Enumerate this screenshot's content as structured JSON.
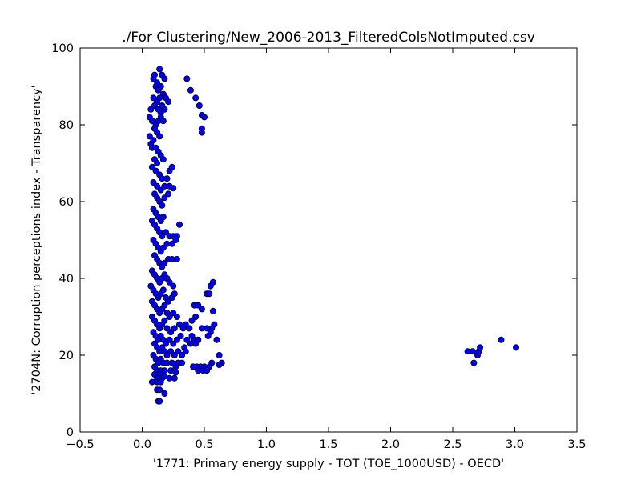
{
  "chart_data": {
    "type": "scatter",
    "title": "./For Clustering/New_2006-2013_FilteredColsNotImputed.csv",
    "xlabel": "'1771: Primary energy supply - TOT (TOE_1000USD) - OECD'",
    "ylabel": "'2704N: Corruption perceptions index - Transparency'",
    "xlim": [
      -0.5,
      3.5
    ],
    "ylim": [
      0,
      100
    ],
    "xticks": [
      "−0.5",
      "0.0",
      "0.5",
      "1.0",
      "1.5",
      "2.0",
      "2.5",
      "3.0",
      "3.5"
    ],
    "yticks": [
      "0",
      "20",
      "40",
      "60",
      "80",
      "100"
    ],
    "grid": false,
    "marker_color": "#0000ff",
    "marker_edge": "#000000",
    "points": [
      [
        0.09,
        92
      ],
      [
        0.1,
        93
      ],
      [
        0.12,
        91
      ],
      [
        0.14,
        94.5
      ],
      [
        0.16,
        93
      ],
      [
        0.18,
        92
      ],
      [
        0.11,
        90
      ],
      [
        0.13,
        89
      ],
      [
        0.15,
        90
      ],
      [
        0.17,
        88
      ],
      [
        0.09,
        87
      ],
      [
        0.12,
        86
      ],
      [
        0.14,
        87
      ],
      [
        0.16,
        85
      ],
      [
        0.19,
        87
      ],
      [
        0.21,
        86
      ],
      [
        0.1,
        85
      ],
      [
        0.13,
        84
      ],
      [
        0.15,
        83
      ],
      [
        0.18,
        84
      ],
      [
        0.07,
        84
      ],
      [
        0.06,
        82
      ],
      [
        0.08,
        81
      ],
      [
        0.11,
        80
      ],
      [
        0.13,
        81
      ],
      [
        0.15,
        82
      ],
      [
        0.17,
        81
      ],
      [
        0.1,
        79
      ],
      [
        0.12,
        78
      ],
      [
        0.14,
        77
      ],
      [
        0.06,
        77
      ],
      [
        0.07,
        75
      ],
      [
        0.08,
        74
      ],
      [
        0.09,
        76
      ],
      [
        0.11,
        74
      ],
      [
        0.13,
        73
      ],
      [
        0.15,
        72
      ],
      [
        0.17,
        71
      ],
      [
        0.1,
        71
      ],
      [
        0.12,
        70
      ],
      [
        0.08,
        69
      ],
      [
        0.11,
        68
      ],
      [
        0.14,
        67
      ],
      [
        0.16,
        66
      ],
      [
        0.2,
        66
      ],
      [
        0.22,
        68
      ],
      [
        0.24,
        69
      ],
      [
        0.09,
        65
      ],
      [
        0.12,
        64
      ],
      [
        0.15,
        63
      ],
      [
        0.18,
        64
      ],
      [
        0.22,
        64
      ],
      [
        0.25,
        63.5
      ],
      [
        0.1,
        62
      ],
      [
        0.12,
        61
      ],
      [
        0.14,
        60
      ],
      [
        0.16,
        59
      ],
      [
        0.18,
        61
      ],
      [
        0.21,
        62
      ],
      [
        0.09,
        58
      ],
      [
        0.11,
        57
      ],
      [
        0.13,
        56
      ],
      [
        0.15,
        55
      ],
      [
        0.17,
        56
      ],
      [
        0.08,
        55
      ],
      [
        0.1,
        54
      ],
      [
        0.12,
        53
      ],
      [
        0.14,
        52
      ],
      [
        0.16,
        51
      ],
      [
        0.19,
        52
      ],
      [
        0.22,
        51
      ],
      [
        0.25,
        51
      ],
      [
        0.28,
        51
      ],
      [
        0.3,
        54
      ],
      [
        0.09,
        50
      ],
      [
        0.11,
        49
      ],
      [
        0.13,
        48
      ],
      [
        0.15,
        47
      ],
      [
        0.17,
        48
      ],
      [
        0.2,
        49
      ],
      [
        0.24,
        49
      ],
      [
        0.27,
        50
      ],
      [
        0.1,
        46
      ],
      [
        0.12,
        45
      ],
      [
        0.14,
        44
      ],
      [
        0.16,
        43
      ],
      [
        0.18,
        44
      ],
      [
        0.21,
        45
      ],
      [
        0.24,
        45
      ],
      [
        0.28,
        45
      ],
      [
        0.08,
        42
      ],
      [
        0.1,
        41
      ],
      [
        0.12,
        40
      ],
      [
        0.14,
        39
      ],
      [
        0.16,
        40
      ],
      [
        0.18,
        41
      ],
      [
        0.2,
        40
      ],
      [
        0.22,
        39
      ],
      [
        0.25,
        38
      ],
      [
        0.07,
        38
      ],
      [
        0.09,
        37
      ],
      [
        0.11,
        36
      ],
      [
        0.13,
        35
      ],
      [
        0.15,
        36
      ],
      [
        0.17,
        37
      ],
      [
        0.19,
        35
      ],
      [
        0.21,
        34
      ],
      [
        0.24,
        35
      ],
      [
        0.26,
        36
      ],
      [
        0.08,
        34
      ],
      [
        0.1,
        33
      ],
      [
        0.12,
        32
      ],
      [
        0.14,
        31
      ],
      [
        0.16,
        32
      ],
      [
        0.18,
        33
      ],
      [
        0.2,
        31
      ],
      [
        0.22,
        30
      ],
      [
        0.25,
        31
      ],
      [
        0.28,
        30
      ],
      [
        0.08,
        30
      ],
      [
        0.1,
        29
      ],
      [
        0.12,
        28
      ],
      [
        0.14,
        27
      ],
      [
        0.16,
        28
      ],
      [
        0.18,
        29
      ],
      [
        0.2,
        27
      ],
      [
        0.23,
        26
      ],
      [
        0.26,
        27
      ],
      [
        0.3,
        28
      ],
      [
        0.33,
        27
      ],
      [
        0.35,
        28
      ],
      [
        0.38,
        27
      ],
      [
        0.09,
        26
      ],
      [
        0.11,
        25
      ],
      [
        0.13,
        24
      ],
      [
        0.15,
        25
      ],
      [
        0.17,
        24
      ],
      [
        0.19,
        23
      ],
      [
        0.22,
        24
      ],
      [
        0.25,
        23
      ],
      [
        0.28,
        24
      ],
      [
        0.31,
        25
      ],
      [
        0.34,
        22
      ],
      [
        0.36,
        24
      ],
      [
        0.39,
        23
      ],
      [
        0.42,
        24
      ],
      [
        0.1,
        23
      ],
      [
        0.12,
        22
      ],
      [
        0.14,
        21
      ],
      [
        0.16,
        22
      ],
      [
        0.18,
        21
      ],
      [
        0.2,
        20
      ],
      [
        0.23,
        21
      ],
      [
        0.26,
        20
      ],
      [
        0.29,
        21
      ],
      [
        0.32,
        20
      ],
      [
        0.35,
        21
      ],
      [
        0.09,
        20
      ],
      [
        0.11,
        19
      ],
      [
        0.13,
        18
      ],
      [
        0.15,
        19
      ],
      [
        0.17,
        18
      ],
      [
        0.2,
        18
      ],
      [
        0.24,
        18
      ],
      [
        0.27,
        17
      ],
      [
        0.29,
        18
      ],
      [
        0.32,
        18
      ],
      [
        0.1,
        17
      ],
      [
        0.12,
        16
      ],
      [
        0.15,
        16
      ],
      [
        0.18,
        16
      ],
      [
        0.23,
        16
      ],
      [
        0.27,
        15.5
      ],
      [
        0.1,
        15
      ],
      [
        0.14,
        15
      ],
      [
        0.16,
        14
      ],
      [
        0.18,
        14.5
      ],
      [
        0.22,
        14
      ],
      [
        0.26,
        14
      ],
      [
        0.12,
        14
      ],
      [
        0.08,
        13
      ],
      [
        0.12,
        13
      ],
      [
        0.15,
        13
      ],
      [
        0.12,
        11
      ],
      [
        0.14,
        11
      ],
      [
        0.18,
        10
      ],
      [
        0.13,
        8
      ],
      [
        0.14,
        8
      ],
      [
        0.36,
        92
      ],
      [
        0.39,
        89
      ],
      [
        0.43,
        87
      ],
      [
        0.46,
        85
      ],
      [
        0.48,
        82.5
      ],
      [
        0.5,
        82
      ],
      [
        0.48,
        79
      ],
      [
        0.48,
        78
      ],
      [
        0.42,
        33
      ],
      [
        0.45,
        33
      ],
      [
        0.48,
        32
      ],
      [
        0.52,
        36
      ],
      [
        0.54,
        36
      ],
      [
        0.55,
        38
      ],
      [
        0.57,
        39
      ],
      [
        0.57,
        31.5
      ],
      [
        0.58,
        28
      ],
      [
        0.56,
        27
      ],
      [
        0.52,
        27
      ],
      [
        0.48,
        27
      ],
      [
        0.55,
        26
      ],
      [
        0.53,
        25
      ],
      [
        0.45,
        24
      ],
      [
        0.43,
        23
      ],
      [
        0.4,
        25
      ],
      [
        0.4,
        29
      ],
      [
        0.43,
        30
      ],
      [
        0.6,
        24
      ],
      [
        0.62,
        20
      ],
      [
        0.64,
        18
      ],
      [
        0.62,
        17.5
      ],
      [
        0.56,
        18
      ],
      [
        0.54,
        17
      ],
      [
        0.5,
        17
      ],
      [
        0.47,
        17
      ],
      [
        0.44,
        17
      ],
      [
        0.41,
        17
      ],
      [
        0.45,
        16
      ],
      [
        0.49,
        16
      ],
      [
        0.52,
        16
      ],
      [
        2.62,
        21
      ],
      [
        2.66,
        21
      ],
      [
        2.67,
        18
      ],
      [
        2.7,
        20
      ],
      [
        2.71,
        21
      ],
      [
        2.72,
        22
      ],
      [
        2.89,
        24
      ],
      [
        3.01,
        22
      ]
    ]
  }
}
